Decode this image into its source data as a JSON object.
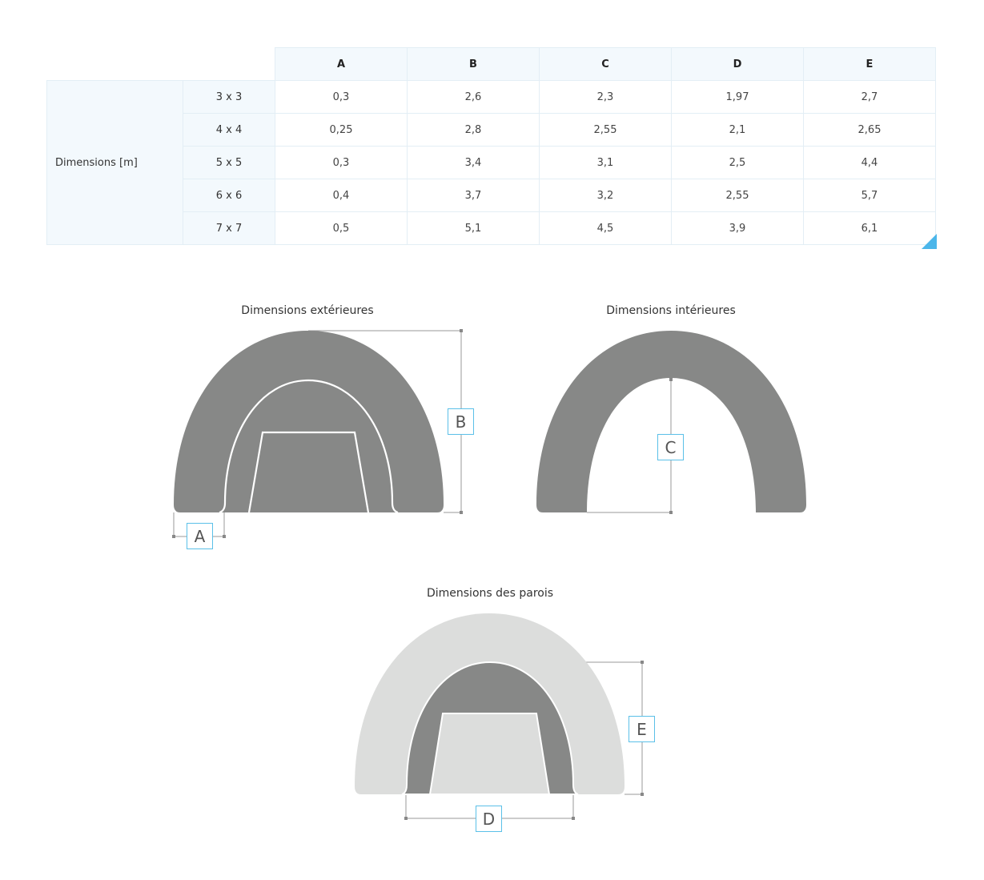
{
  "table": {
    "row_group_label": "Dimensions [m]",
    "columns": [
      "A",
      "B",
      "C",
      "D",
      "E"
    ],
    "rows": [
      {
        "size": "3 x 3",
        "values": [
          "0,3",
          "2,6",
          "2,3",
          "1,97",
          "2,7"
        ]
      },
      {
        "size": "4 x 4",
        "values": [
          "0,25",
          "2,8",
          "2,55",
          "2,1",
          "2,65"
        ]
      },
      {
        "size": "5 x 5",
        "values": [
          "0,3",
          "3,4",
          "3,1",
          "2,5",
          "4,4"
        ]
      },
      {
        "size": "6 x 6",
        "values": [
          "0,4",
          "3,7",
          "3,2",
          "2,55",
          "5,7"
        ]
      },
      {
        "size": "7 x 7",
        "values": [
          "0,5",
          "5,1",
          "4,5",
          "3,9",
          "6,1"
        ]
      }
    ]
  },
  "diagrams": {
    "exterior_title": "Dimensions extérieures",
    "interior_title": "Dimensions intérieures",
    "walls_title": "Dimensions des parois",
    "labels": {
      "a": "A",
      "b": "B",
      "c": "C",
      "d": "D",
      "e": "E"
    }
  },
  "colors": {
    "dark_gray": "#878887",
    "light_gray": "#dcdddc",
    "accent": "#5bc0e8"
  }
}
